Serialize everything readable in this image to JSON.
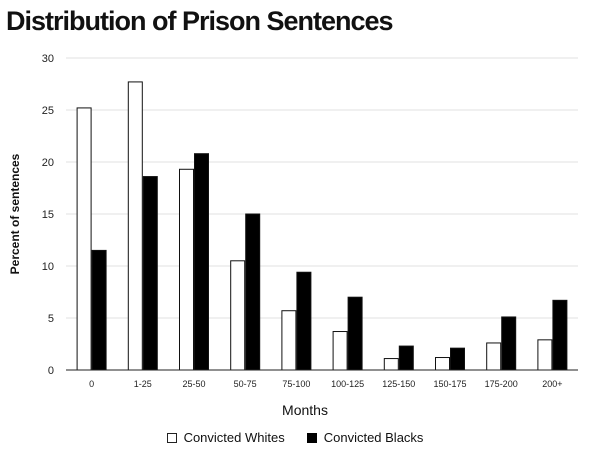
{
  "chart_data": {
    "type": "bar",
    "title": "Distribution of Prison Sentences",
    "xlabel": "Months",
    "ylabel": "Percent of sentences",
    "ylim": [
      0,
      30
    ],
    "yticks": [
      0,
      5,
      10,
      15,
      20,
      25,
      30
    ],
    "grid": true,
    "legend_position": "bottom",
    "categories": [
      "0",
      "1-25",
      "25-50",
      "50-75",
      "75-100",
      "100-125",
      "125-150",
      "150-175",
      "175-200",
      "200+"
    ],
    "series": [
      {
        "name": "Convicted Whites",
        "color": "#ffffff",
        "values": [
          25.2,
          27.7,
          19.3,
          10.5,
          5.7,
          3.7,
          1.1,
          1.2,
          2.6,
          2.9
        ]
      },
      {
        "name": "Convicted Blacks",
        "color": "#000000",
        "values": [
          11.5,
          18.6,
          20.8,
          15.0,
          9.4,
          7.0,
          2.3,
          2.1,
          5.1,
          6.7
        ]
      }
    ]
  }
}
